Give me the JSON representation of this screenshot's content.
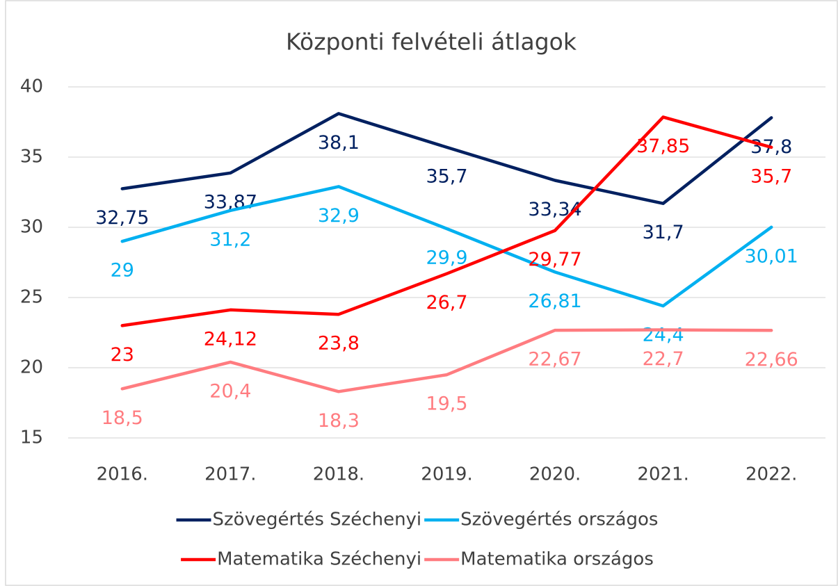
{
  "chart_data": {
    "type": "line",
    "title": "Központi felvételi átlagok",
    "categories": [
      "2016.",
      "2017.",
      "2018.",
      "2019.",
      "2020.",
      "2021.",
      "2022."
    ],
    "series": [
      {
        "name": "Szövegértés Széchenyi",
        "color": "#002060",
        "values": [
          32.75,
          33.87,
          38.1,
          35.7,
          33.34,
          31.7,
          37.8
        ],
        "value_labels": [
          "32,75",
          "33,87",
          "38,1",
          "35,7",
          "33,34",
          "31,7",
          "37,8"
        ]
      },
      {
        "name": "Szövegértés országos",
        "color": "#00b0f0",
        "values": [
          29,
          31.2,
          32.9,
          29.9,
          26.81,
          24.4,
          30.01
        ],
        "value_labels": [
          "29",
          "31,2",
          "32,9",
          "29,9",
          "26,81",
          "24,4",
          "30,01"
        ]
      },
      {
        "name": "Matematika Széchenyi",
        "color": "#ff0000",
        "values": [
          23,
          24.12,
          23.8,
          26.7,
          29.77,
          37.85,
          35.7
        ],
        "value_labels": [
          "23",
          "24,12",
          "23,8",
          "26,7",
          "29,77",
          "37,85",
          "35,7"
        ]
      },
      {
        "name": "Matematika országos",
        "color": "#ff7c80",
        "values": [
          18.5,
          20.4,
          18.3,
          19.5,
          22.67,
          22.7,
          22.66
        ],
        "value_labels": [
          "18,5",
          "20,4",
          "18,3",
          "19,5",
          "22,67",
          "22,7",
          "22,66"
        ]
      }
    ],
    "ylim": [
      15,
      40
    ],
    "yticks": [
      15,
      20,
      25,
      30,
      35,
      40
    ],
    "grid": true
  }
}
